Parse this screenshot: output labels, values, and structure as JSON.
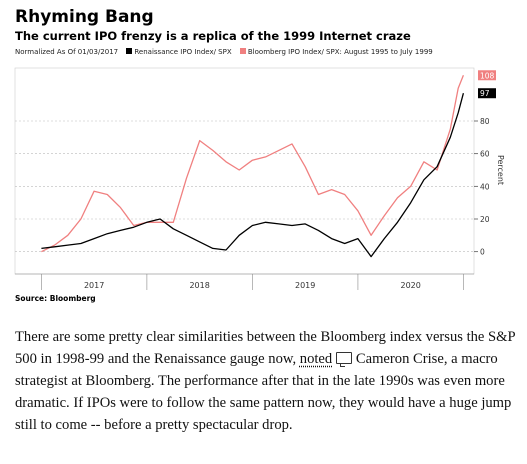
{
  "chart_data": {
    "type": "line",
    "title": "Rhyming Bang",
    "subtitle": "The current IPO frenzy is a replica of the 1999 Internet craze",
    "note": "Normalized As Of 01/03/2017",
    "ylabel": "Percent",
    "source": "Source: Bloomberg",
    "ylim": [
      -10,
      110
    ],
    "y_ticks": [
      0,
      20,
      40,
      60,
      80
    ],
    "y_tick_labels": [
      "0",
      "20",
      "40",
      "60",
      "80"
    ],
    "x_tick_labels": [
      "2017",
      "2018",
      "2019",
      "2020"
    ],
    "x": [
      2017.0,
      2017.125,
      2017.25,
      2017.375,
      2017.5,
      2017.625,
      2017.75,
      2017.875,
      2018.0,
      2018.125,
      2018.25,
      2018.375,
      2018.5,
      2018.625,
      2018.75,
      2018.875,
      2019.0,
      2019.125,
      2019.25,
      2019.375,
      2019.5,
      2019.625,
      2019.75,
      2019.875,
      2020.0,
      2020.125,
      2020.25,
      2020.375,
      2020.5,
      2020.625,
      2020.75,
      2020.875,
      2020.95,
      2021.0
    ],
    "series": [
      {
        "name": "Renaissance IPO Index/ SPX",
        "color": "#000000",
        "end_label": "97",
        "values": [
          2,
          3,
          4,
          5,
          8,
          11,
          13,
          15,
          18,
          20,
          14,
          10,
          6,
          2,
          1,
          10,
          16,
          18,
          17,
          16,
          17,
          13,
          8,
          5,
          8,
          -3,
          8,
          18,
          30,
          44,
          52,
          70,
          85,
          97
        ]
      },
      {
        "name": "Bloomberg IPO Index/ SPX: August 1995 to July 1999",
        "color": "#f08080",
        "end_label": "108",
        "values": [
          0,
          4,
          10,
          20,
          37,
          35,
          27,
          16,
          18,
          18,
          18,
          45,
          68,
          62,
          55,
          50,
          56,
          58,
          62,
          66,
          52,
          35,
          38,
          35,
          25,
          10,
          22,
          33,
          40,
          55,
          50,
          75,
          100,
          108
        ]
      }
    ]
  },
  "legend": {
    "note": "Normalized As Of 01/03/2017",
    "items": [
      "Renaissance IPO Index/ SPX",
      "Bloomberg IPO Index/ SPX: August 1995 to July 1999"
    ]
  },
  "article": {
    "text_before": "There are some pretty clear similarities between the Bloomberg index versus the S&P 500 in 1998-99 and the Renaissance gauge now, ",
    "link_text": "noted",
    "text_after": " Cameron Crise, a macro strategist at Bloomberg. The performance after that in the late 1990s was even more dramatic. If IPOs were to follow the same pattern now, they would have a huge jump still to come -- before a pretty spectacular drop."
  }
}
